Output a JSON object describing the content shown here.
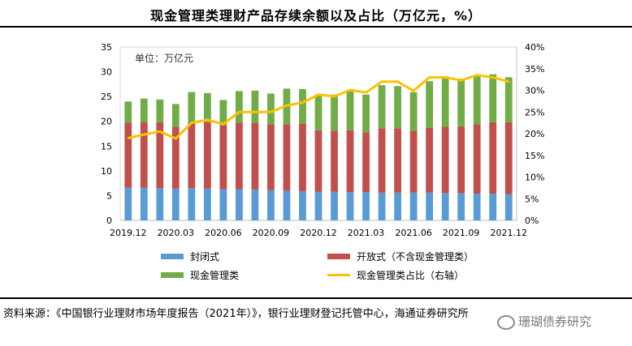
{
  "title": "现金管理类理财产品存续余额以及占比（万亿元，%）",
  "source": "资料来源：《中国银行业理财市场年度报告（2021年）》，银行业理财登记托管中心，海通证券研究所",
  "watermark": "珊瑚债券研究",
  "chart_data": {
    "type": "bar",
    "stacked": true,
    "unit_label": "单位：万亿元",
    "categories": [
      "2019.12",
      "2020.01",
      "2020.02",
      "2020.03",
      "2020.04",
      "2020.05",
      "2020.06",
      "2020.07",
      "2020.08",
      "2020.09",
      "2020.10",
      "2020.11",
      "2020.12",
      "2021.01",
      "2021.02",
      "2021.03",
      "2021.04",
      "2021.05",
      "2021.06",
      "2021.07",
      "2021.08",
      "2021.09",
      "2021.10",
      "2021.11",
      "2021.12"
    ],
    "x_tick_labels": [
      "2019.12",
      "2020.03",
      "2020.06",
      "2020.09",
      "2020.12",
      "2021.03",
      "2021.06",
      "2021.09",
      "2021.12"
    ],
    "x_tick_indices": [
      0,
      3,
      6,
      9,
      12,
      15,
      18,
      21,
      24
    ],
    "series": [
      {
        "name": "封闭式",
        "color": "#5B9BD5",
        "values": [
          6.6,
          6.6,
          6.5,
          6.4,
          6.5,
          6.4,
          6.3,
          6.3,
          6.2,
          6.1,
          6.0,
          5.9,
          5.8,
          5.8,
          5.7,
          5.7,
          5.6,
          5.6,
          5.6,
          5.6,
          5.5,
          5.5,
          5.4,
          5.4,
          5.3
        ]
      },
      {
        "name": "开放式（不含现金管理类）",
        "color": "#C0504D",
        "values": [
          13.1,
          13.3,
          13.3,
          12.5,
          13.2,
          13.4,
          12.9,
          13.4,
          13.5,
          13.3,
          13.4,
          13.6,
          12.4,
          12.3,
          12.5,
          12.1,
          13.0,
          13.0,
          12.5,
          13.1,
          13.4,
          13.5,
          14.0,
          14.4,
          14.5
        ]
      },
      {
        "name": "现金管理类",
        "color": "#70AD47",
        "values": [
          4.3,
          4.7,
          4.6,
          4.6,
          6.2,
          5.9,
          5.1,
          6.4,
          6.5,
          6.2,
          7.2,
          7.0,
          7.1,
          7.3,
          8.0,
          7.6,
          8.7,
          8.5,
          7.8,
          9.4,
          9.7,
          9.6,
          9.9,
          9.7,
          9.1
        ]
      }
    ],
    "line": {
      "name": "现金管理类占比（右轴）",
      "color": "#FFC000",
      "axis": "right",
      "values": [
        19.0,
        19.8,
        20.5,
        18.9,
        22.5,
        23.2,
        22.2,
        25.0,
        25.0,
        25.0,
        26.5,
        27.2,
        29.0,
        28.6,
        30.1,
        29.5,
        32.0,
        32.0,
        29.9,
        33.0,
        33.0,
        32.3,
        33.5,
        33.0,
        32.0
      ]
    },
    "y_left": {
      "min": 0,
      "max": 35,
      "ticks": [
        0,
        5,
        10,
        15,
        20,
        25,
        30,
        35
      ]
    },
    "y_right": {
      "min": 0,
      "max": 40,
      "ticks": [
        "0%",
        "5%",
        "10%",
        "15%",
        "20%",
        "25%",
        "30%",
        "35%",
        "40%"
      ]
    },
    "legend": [
      "封闭式",
      "开放式（不含现金管理类）",
      "现金管理类",
      "现金管理类占比（右轴）"
    ]
  }
}
